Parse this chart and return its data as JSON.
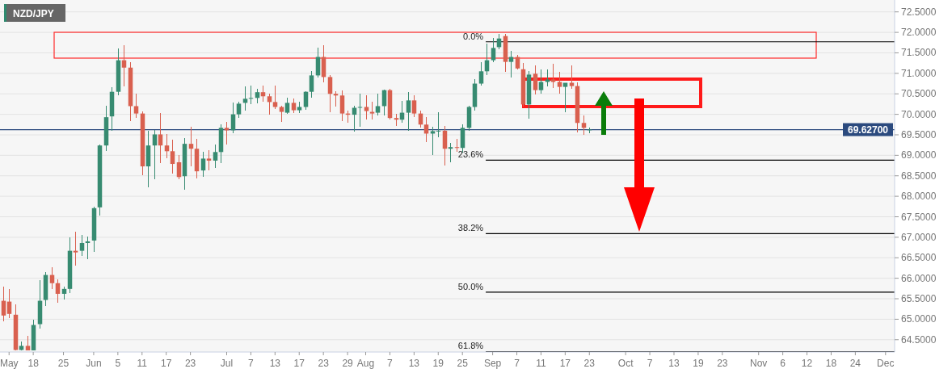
{
  "chart_data": {
    "type": "candlestick",
    "title": "NZD/JPY",
    "categories": [
      null,
      "May",
      null,
      null,
      null,
      "18",
      null,
      null,
      null,
      null,
      "25",
      null,
      null,
      null,
      null,
      "Jun",
      null,
      null,
      null,
      "5",
      null,
      null,
      null,
      "11",
      null,
      null,
      null,
      "17",
      null,
      null,
      null,
      "23",
      null,
      null,
      null,
      null,
      null,
      "Jul",
      null,
      null,
      null,
      "7",
      null,
      null,
      null,
      "13",
      null,
      null,
      null,
      "17",
      null,
      null,
      null,
      "23",
      null,
      null,
      null,
      "29",
      null,
      null,
      "Aug",
      null,
      null,
      null,
      "7",
      null,
      null,
      null,
      "13",
      null,
      null,
      null,
      "19",
      null,
      null,
      null,
      "25",
      null,
      null,
      null,
      null,
      "Sep",
      null,
      null,
      null,
      "7",
      null,
      null,
      null,
      "11",
      null,
      null,
      null,
      "17",
      null,
      null,
      null,
      "23",
      null,
      null,
      null,
      null,
      null,
      "Oct",
      null,
      null,
      null,
      "7",
      null,
      null,
      null,
      "13",
      null,
      null,
      null,
      "19",
      null,
      null,
      null,
      "23",
      null,
      null,
      null,
      null,
      null,
      "Nov",
      null,
      null,
      null,
      "6",
      null,
      null,
      null,
      "12",
      null,
      null,
      null,
      "18",
      null,
      null,
      null,
      "24",
      null,
      null,
      null,
      null,
      "Dec",
      null
    ],
    "ohlc": [
      [
        65.45,
        65.8,
        64.94,
        65.09
      ],
      [
        65.43,
        65.74,
        65.03,
        65.13
      ],
      [
        65.11,
        65.37,
        64.23,
        64.25
      ],
      [
        64.25,
        64.46,
        64.23,
        64.35
      ],
      [
        64.35,
        64.6,
        64.23,
        64.24
      ],
      [
        64.24,
        64.98,
        64.23,
        64.86
      ],
      [
        64.88,
        65.96,
        64.78,
        65.45
      ],
      [
        65.47,
        66.15,
        65.33,
        66.08
      ],
      [
        66.08,
        66.27,
        65.74,
        65.88
      ],
      [
        65.88,
        65.98,
        65.41,
        65.62
      ],
      [
        65.62,
        65.8,
        65.49,
        65.74
      ],
      [
        65.74,
        67.0,
        65.64,
        66.67
      ],
      [
        66.67,
        67.14,
        66.31,
        66.63
      ],
      [
        66.67,
        67.06,
        66.55,
        66.86
      ],
      [
        66.86,
        67.02,
        66.47,
        66.9
      ],
      [
        66.92,
        67.75,
        66.65,
        67.71
      ],
      [
        67.73,
        69.26,
        67.53,
        69.24
      ],
      [
        69.24,
        70.2,
        69.1,
        69.93
      ],
      [
        69.95,
        70.67,
        69.59,
        70.55
      ],
      [
        70.55,
        71.6,
        70.46,
        71.32
      ],
      [
        71.32,
        71.69,
        70.69,
        71.14
      ],
      [
        71.14,
        71.28,
        69.83,
        70.2
      ],
      [
        70.2,
        70.5,
        69.91,
        70.02
      ],
      [
        70.02,
        70.08,
        68.51,
        68.73
      ],
      [
        68.73,
        69.59,
        68.22,
        69.24
      ],
      [
        69.24,
        69.61,
        68.41,
        69.51
      ],
      [
        69.51,
        70.04,
        68.81,
        69.24
      ],
      [
        69.24,
        69.51,
        68.92,
        69.1
      ],
      [
        69.1,
        69.38,
        68.55,
        68.79
      ],
      [
        68.83,
        69.0,
        68.41,
        68.47
      ],
      [
        68.49,
        69.42,
        68.16,
        69.28
      ],
      [
        69.28,
        69.69,
        68.73,
        69.16
      ],
      [
        69.16,
        69.4,
        68.43,
        68.61
      ],
      [
        68.63,
        69.08,
        68.47,
        68.92
      ],
      [
        68.92,
        69.12,
        68.63,
        68.87
      ],
      [
        68.87,
        69.26,
        68.69,
        69.08
      ],
      [
        69.08,
        69.75,
        68.81,
        69.67
      ],
      [
        69.67,
        69.81,
        69.26,
        69.61
      ],
      [
        69.61,
        70.28,
        69.53,
        70.0
      ],
      [
        70.0,
        70.3,
        69.91,
        70.26
      ],
      [
        70.28,
        70.69,
        70.1,
        70.38
      ],
      [
        70.38,
        70.71,
        70.24,
        70.4
      ],
      [
        70.4,
        70.63,
        70.26,
        70.54
      ],
      [
        70.54,
        70.71,
        70.3,
        70.44
      ],
      [
        70.44,
        70.5,
        70.0,
        70.3
      ],
      [
        70.3,
        70.71,
        70.14,
        70.18
      ],
      [
        70.18,
        70.2,
        69.81,
        70.06
      ],
      [
        70.04,
        70.4,
        70.02,
        70.28
      ],
      [
        70.28,
        70.38,
        70.04,
        70.1
      ],
      [
        70.1,
        70.3,
        70.04,
        70.18
      ],
      [
        70.18,
        70.57,
        70.12,
        70.55
      ],
      [
        70.55,
        71.05,
        70.4,
        70.95
      ],
      [
        70.95,
        71.62,
        70.89,
        71.4
      ],
      [
        71.4,
        71.69,
        70.79,
        70.91
      ],
      [
        70.91,
        70.95,
        70.06,
        70.5
      ],
      [
        70.5,
        70.57,
        70.18,
        70.46
      ],
      [
        70.46,
        70.59,
        69.83,
        70.02
      ],
      [
        70.02,
        70.1,
        69.79,
        69.99
      ],
      [
        69.99,
        70.2,
        69.57,
        70.16
      ],
      [
        70.16,
        70.5,
        69.69,
        70.18
      ],
      [
        70.18,
        70.46,
        69.87,
        70.08
      ],
      [
        70.06,
        70.3,
        69.87,
        70.02
      ],
      [
        70.04,
        70.5,
        69.97,
        70.2
      ],
      [
        70.2,
        70.61,
        69.97,
        70.59
      ],
      [
        70.59,
        70.63,
        69.87,
        69.91
      ],
      [
        69.91,
        70.02,
        69.71,
        69.87
      ],
      [
        69.87,
        70.32,
        69.79,
        70.04
      ],
      [
        70.04,
        70.55,
        69.59,
        70.34
      ],
      [
        70.34,
        70.46,
        69.93,
        70.02
      ],
      [
        70.02,
        70.1,
        69.67,
        69.75
      ],
      [
        69.75,
        69.93,
        69.32,
        69.53
      ],
      [
        69.53,
        69.69,
        69.0,
        69.59
      ],
      [
        69.59,
        70.06,
        69.44,
        69.6
      ],
      [
        69.6,
        69.71,
        68.75,
        69.16
      ],
      [
        69.16,
        69.3,
        68.83,
        69.2
      ],
      [
        69.2,
        69.4,
        69.08,
        69.18
      ],
      [
        69.18,
        69.75,
        69.06,
        69.67
      ],
      [
        69.67,
        70.2,
        69.59,
        70.18
      ],
      [
        70.18,
        70.85,
        70.1,
        70.75
      ],
      [
        70.75,
        71.28,
        70.7,
        71.05
      ],
      [
        71.05,
        71.73,
        70.95,
        71.32
      ],
      [
        71.32,
        71.87,
        71.28,
        71.62
      ],
      [
        71.64,
        71.97,
        71.58,
        71.85
      ],
      [
        71.91,
        71.97,
        71.03,
        71.28
      ],
      [
        71.28,
        71.54,
        70.89,
        71.4
      ],
      [
        71.4,
        71.46,
        71.1,
        71.12
      ],
      [
        71.1,
        71.26,
        70.18,
        70.24
      ],
      [
        70.24,
        71.05,
        69.89,
        70.97
      ],
      [
        70.99,
        71.2,
        70.48,
        70.59
      ],
      [
        70.59,
        71.09,
        70.5,
        70.79
      ],
      [
        70.79,
        71.09,
        70.69,
        70.85
      ],
      [
        70.85,
        71.24,
        70.65,
        70.79
      ],
      [
        70.79,
        71.03,
        70.5,
        70.67
      ],
      [
        70.67,
        70.77,
        70.06,
        70.77
      ],
      [
        70.77,
        71.2,
        70.63,
        70.69
      ],
      [
        70.69,
        70.79,
        69.55,
        69.79
      ],
      [
        69.79,
        69.97,
        69.49,
        69.67
      ],
      [
        69.61,
        69.67,
        69.53,
        69.63
      ],
      null,
      null,
      null,
      null,
      null,
      null,
      null,
      null,
      null,
      null,
      null,
      null,
      null,
      null,
      null,
      null,
      null,
      null,
      null,
      null,
      null,
      null,
      null,
      null,
      null,
      null,
      null,
      null,
      null,
      null,
      null,
      null,
      null,
      null,
      null,
      null,
      null,
      null,
      null,
      null,
      null,
      null,
      null,
      null,
      null,
      null,
      null,
      null,
      null,
      null
    ],
    "colors": [
      "#d9604f",
      "#d9604f",
      "#d9604f",
      "#378b71",
      "#d9604f",
      "#378b71",
      "#378b71",
      "#378b71",
      "#d9604f",
      "#d9604f",
      "#378b71",
      "#378b71",
      "#d9604f",
      "#378b71",
      "#378b71",
      "#378b71",
      "#378b71",
      "#378b71",
      "#378b71",
      "#378b71",
      "#d9604f",
      "#d9604f",
      "#d9604f",
      "#d9604f",
      "#378b71",
      "#378b71",
      "#d9604f",
      "#d9604f",
      "#d9604f",
      "#d9604f",
      "#378b71",
      "#d9604f",
      "#d9604f",
      "#378b71",
      "#d9604f",
      "#378b71",
      "#378b71",
      "#d9604f",
      "#378b71",
      "#378b71",
      "#378b71",
      "#378b71",
      "#378b71",
      "#d9604f",
      "#d9604f",
      "#d9604f",
      "#d9604f",
      "#378b71",
      "#d9604f",
      "#378b71",
      "#378b71",
      "#378b71",
      "#378b71",
      "#d9604f",
      "#d9604f",
      "#d9604f",
      "#d9604f",
      "#d9604f",
      "#378b71",
      "#378b71",
      "#d9604f",
      "#d9604f",
      "#378b71",
      "#378b71",
      "#d9604f",
      "#d9604f",
      "#378b71",
      "#378b71",
      "#d9604f",
      "#d9604f",
      "#d9604f",
      "#378b71",
      "#378b71",
      "#d9604f",
      "#378b71",
      "#d9604f",
      "#378b71",
      "#378b71",
      "#378b71",
      "#378b71",
      "#378b71",
      "#378b71",
      "#378b71",
      "#d9604f",
      "#378b71",
      "#d9604f",
      "#d9604f",
      "#378b71",
      "#d9604f",
      "#378b71",
      "#378b71",
      "#d9604f",
      "#d9604f",
      "#378b71",
      "#d9604f",
      "#d9604f",
      "#d9604f",
      "#378b71",
      null,
      null,
      null,
      null,
      null,
      null,
      null,
      null,
      null,
      null,
      null,
      null,
      null,
      null,
      null,
      null,
      null,
      null,
      null,
      null,
      null,
      null,
      null,
      null,
      null,
      null,
      null,
      null,
      null,
      null,
      null,
      null,
      null,
      null,
      null,
      null,
      null,
      null,
      null,
      null,
      null,
      null,
      null,
      null,
      null,
      null,
      null,
      null,
      null,
      null
    ],
    "ylim": [
      64.2,
      72.79
    ],
    "yticks": [
      {
        "value": 64.5,
        "label": "64.5000"
      },
      {
        "value": 65,
        "label": "65.0000"
      },
      {
        "value": 65.5,
        "label": "65.5000"
      },
      {
        "value": 66,
        "label": "66.0000"
      },
      {
        "value": 66.5,
        "label": "66.5000"
      },
      {
        "value": 67,
        "label": "67.0000"
      },
      {
        "value": 67.5,
        "label": "67.5000"
      },
      {
        "value": 68,
        "label": "68.0000"
      },
      {
        "value": 68.5,
        "label": "68.5000"
      },
      {
        "value": 69,
        "label": "69.0000"
      },
      {
        "value": 69.5,
        "label": "69.5000"
      },
      {
        "value": 70,
        "label": "70.0000"
      },
      {
        "value": 70.5,
        "label": "70.5000"
      },
      {
        "value": 71,
        "label": "71.0000"
      },
      {
        "value": 71.5,
        "label": "71.5000"
      },
      {
        "value": 72,
        "label": "72.0000"
      },
      {
        "value": 72.5,
        "label": "72.5000"
      }
    ],
    "grid": "y",
    "ref_lines": [
      {
        "axis": "y",
        "value": 71.77,
        "color": "#000000"
      },
      {
        "axis": "y",
        "value": 68.88,
        "color": "#000000"
      },
      {
        "axis": "y",
        "value": 67.09,
        "color": "#000000"
      },
      {
        "axis": "y",
        "value": 65.66,
        "color": "#000000"
      },
      {
        "axis": "y",
        "value": 64.21,
        "color": "#000000"
      },
      {
        "axis": "y",
        "value": 69.627,
        "label": "69.62700",
        "color": "#2b4a7e"
      }
    ],
    "annotations": [
      "0.0%",
      "23.6%",
      "38.2%",
      "50.0%",
      "61.8%"
    ]
  }
}
